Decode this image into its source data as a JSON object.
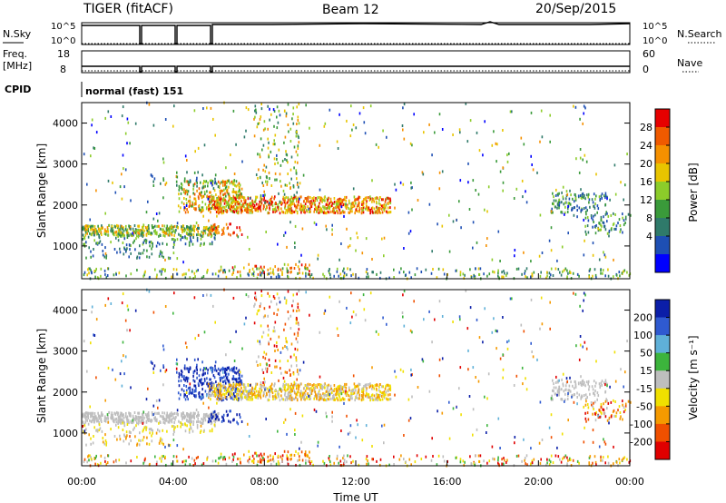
{
  "header": {
    "left_title": "TIGER (fitACF)",
    "center_title": "Beam 12",
    "right_title": "20/Sep/2015"
  },
  "noise_panel": {
    "left_label": "N.Sky",
    "right_label": "N.Search",
    "right_ticks": [
      "10^5",
      "10^0"
    ],
    "left_ticks": [
      "10^5",
      "10^0"
    ]
  },
  "freq_panel": {
    "left_label_1": "Freq.",
    "left_label_2": "[MHz]",
    "right_label": "Nave",
    "left_ticks": [
      "18",
      "8"
    ],
    "right_ticks": [
      "60",
      "0"
    ]
  },
  "cpid_panel": {
    "label": "CPID",
    "mode_text": "normal (fast) 151"
  },
  "colors": {
    "power": [
      "#0000ff",
      "#1e4fb4",
      "#2f7a6a",
      "#3a9a3a",
      "#8ccc2a",
      "#e8c400",
      "#f59000",
      "#f05a00",
      "#e60000"
    ],
    "velocity": [
      "#0b1ea8",
      "#2f5ad0",
      "#5fb0d8",
      "#3cb43c",
      "#bebebe",
      "#f0e000",
      "#f59a00",
      "#f05000",
      "#e00000"
    ]
  },
  "chart_data": [
    {
      "type": "heatmap",
      "name": "power",
      "ylabel": "Slant Range [km]",
      "yticks": [
        "4000",
        "3000",
        "2000",
        "1000"
      ],
      "ylim": [
        200,
        4500
      ],
      "xlim_hours": [
        0,
        24
      ],
      "colorbar": {
        "label": "Power [dB]",
        "ticks": [
          "28",
          "24",
          "20",
          "16",
          "12",
          "8",
          "4"
        ]
      },
      "features": [
        {
          "desc": "band",
          "t": [
            0,
            6
          ],
          "range": [
            1250,
            1500
          ],
          "level": "mid"
        },
        {
          "desc": "band",
          "t": [
            5,
            13.5
          ],
          "range": [
            1800,
            2200
          ],
          "level": "high"
        },
        {
          "desc": "band",
          "t": [
            20.5,
            24
          ],
          "range": [
            1300,
            2300
          ],
          "level": "low"
        },
        {
          "desc": "near-range",
          "t": [
            0,
            24
          ],
          "range": [
            200,
            700
          ],
          "level": "mixed"
        }
      ]
    },
    {
      "type": "heatmap",
      "name": "velocity",
      "ylabel": "Slant Range [km]",
      "yticks": [
        "4000",
        "3000",
        "2000",
        "1000"
      ],
      "ylim": [
        200,
        4500
      ],
      "xlim_hours": [
        0,
        24
      ],
      "xticks": [
        "00:00",
        "04:00",
        "08:00",
        "12:00",
        "16:00",
        "20:00",
        "00:00"
      ],
      "xlabel": "Time UT",
      "colorbar": {
        "label": "Velocity [m s⁻¹]",
        "ticks": [
          "200",
          "100",
          "50",
          "15",
          "-15",
          "-50",
          "-100",
          "-200"
        ]
      }
    }
  ]
}
